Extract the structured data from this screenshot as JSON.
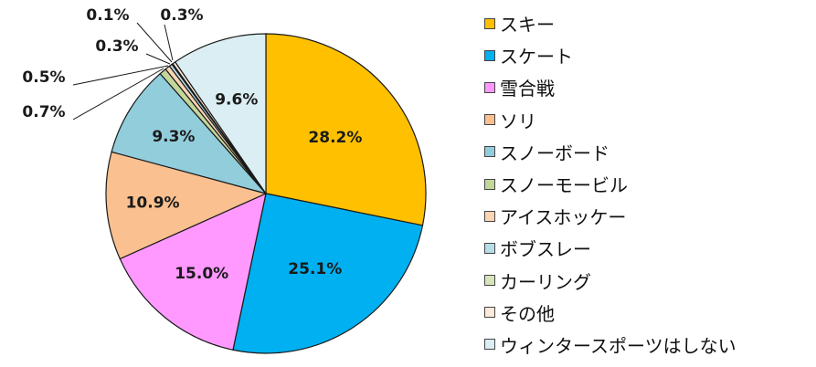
{
  "chart_data": {
    "type": "pie",
    "start_angle_deg": 0,
    "direction": "clockwise",
    "legend_position": "right",
    "categories": [
      "スキー",
      "スケート",
      "雪合戦",
      "ソリ",
      "スノーボード",
      "スノーモービル",
      "アイスホッケー",
      "ボブスレー",
      "カーリング",
      "その他",
      "ウィンタースポーツはしない"
    ],
    "values": [
      28.2,
      25.1,
      15.0,
      10.9,
      9.3,
      0.7,
      0.5,
      0.3,
      0.1,
      0.3,
      9.6
    ],
    "labels": [
      "28.2%",
      "25.1%",
      "15.0%",
      "10.9%",
      "9.3%",
      "0.7%",
      "0.5%",
      "0.3%",
      "0.1%",
      "0.3%",
      "9.6%"
    ],
    "colors": [
      "#FFC000",
      "#00B0F0",
      "#FF99FF",
      "#FAC090",
      "#92CDDC",
      "#C4D79B",
      "#FCD5B5",
      "#B7DEE8",
      "#D8E4BC",
      "#FDE9D9",
      "#DAEEF3"
    ]
  }
}
